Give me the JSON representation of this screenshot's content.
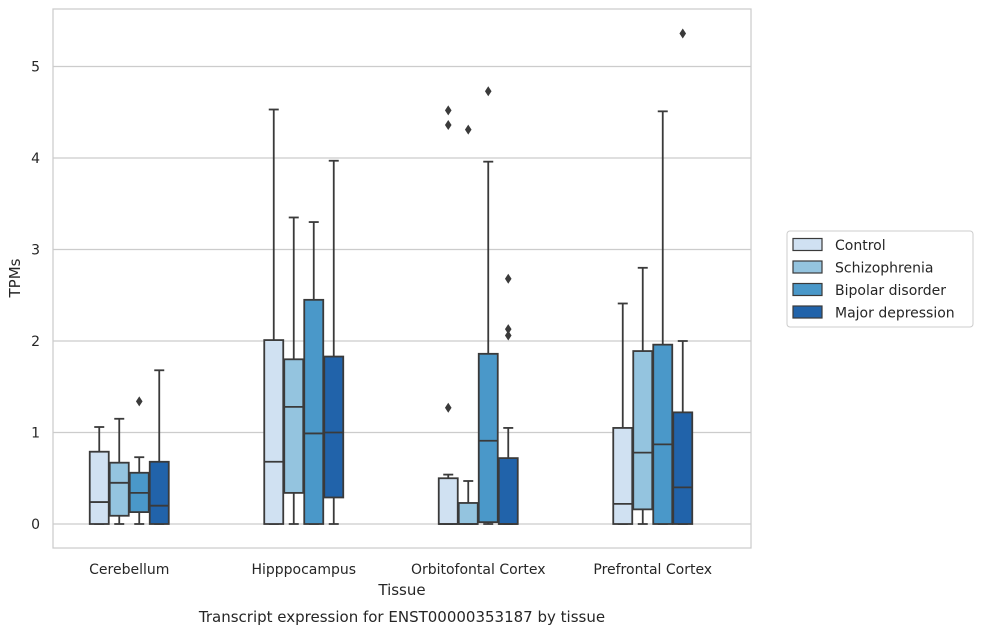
{
  "caption": "Transcript expression for ENST00000353187 by tissue",
  "chart_data": {
    "type": "box",
    "title": "",
    "xlabel": "Tissue",
    "ylabel": "TPMs",
    "ylim": [
      -0.25,
      5.65
    ],
    "yticks": [
      0,
      1,
      2,
      3,
      4,
      5
    ],
    "grid": true,
    "legend_position": "right",
    "categories": [
      "Cerebellum",
      "Hipppocampus",
      "Orbitofontal Cortex",
      "Prefrontal Cortex"
    ],
    "series": [
      {
        "name": "Control",
        "color": "#d0e1f2",
        "boxes": [
          {
            "whislo": 0,
            "q1": 0,
            "med": 0.24,
            "q3": 0.79,
            "whishi": 1.06,
            "fliers": []
          },
          {
            "whislo": 0,
            "q1": 0,
            "med": 0.68,
            "q3": 2.01,
            "whishi": 4.53,
            "fliers": []
          },
          {
            "whislo": 0,
            "q1": 0,
            "med": 0,
            "q3": 0.5,
            "whishi": 0.54,
            "fliers": [
              1.27,
              4.36,
              4.52
            ]
          },
          {
            "whislo": 0,
            "q1": 0,
            "med": 0.22,
            "q3": 1.05,
            "whishi": 2.41,
            "fliers": []
          }
        ]
      },
      {
        "name": "Schizophrenia",
        "color": "#94c4df",
        "boxes": [
          {
            "whislo": 0,
            "q1": 0.09,
            "med": 0.45,
            "q3": 0.67,
            "whishi": 1.15,
            "fliers": []
          },
          {
            "whislo": 0,
            "q1": 0.34,
            "med": 1.28,
            "q3": 1.8,
            "whishi": 3.35,
            "fliers": []
          },
          {
            "whislo": 0,
            "q1": 0,
            "med": 0,
            "q3": 0.23,
            "whishi": 0.47,
            "fliers": [
              4.31
            ]
          },
          {
            "whislo": 0,
            "q1": 0.16,
            "med": 0.78,
            "q3": 1.89,
            "whishi": 2.8,
            "fliers": []
          }
        ]
      },
      {
        "name": "Bipolar disorder",
        "color": "#4a98c9",
        "boxes": [
          {
            "whislo": 0,
            "q1": 0.13,
            "med": 0.34,
            "q3": 0.56,
            "whishi": 0.73,
            "fliers": [
              1.34
            ]
          },
          {
            "whislo": 0,
            "q1": 0,
            "med": 0.99,
            "q3": 2.45,
            "whishi": 3.3,
            "fliers": []
          },
          {
            "whislo": 0,
            "q1": 0.02,
            "med": 0.91,
            "q3": 1.86,
            "whishi": 3.96,
            "fliers": [
              4.73
            ]
          },
          {
            "whislo": 0,
            "q1": 0,
            "med": 0.87,
            "q3": 1.96,
            "whishi": 4.51,
            "fliers": []
          }
        ]
      },
      {
        "name": "Major depression",
        "color": "#2163aa",
        "boxes": [
          {
            "whislo": 0,
            "q1": 0,
            "med": 0.2,
            "q3": 0.68,
            "whishi": 1.68,
            "fliers": []
          },
          {
            "whislo": 0,
            "q1": 0.29,
            "med": 1.0,
            "q3": 1.83,
            "whishi": 3.97,
            "fliers": []
          },
          {
            "whislo": 0,
            "q1": 0,
            "med": 0,
            "q3": 0.72,
            "whishi": 1.05,
            "fliers": [
              2.06,
              2.13,
              2.68
            ]
          },
          {
            "whislo": 0,
            "q1": 0,
            "med": 0.4,
            "q3": 1.22,
            "whishi": 2.0,
            "fliers": [
              5.36
            ]
          }
        ]
      }
    ]
  }
}
